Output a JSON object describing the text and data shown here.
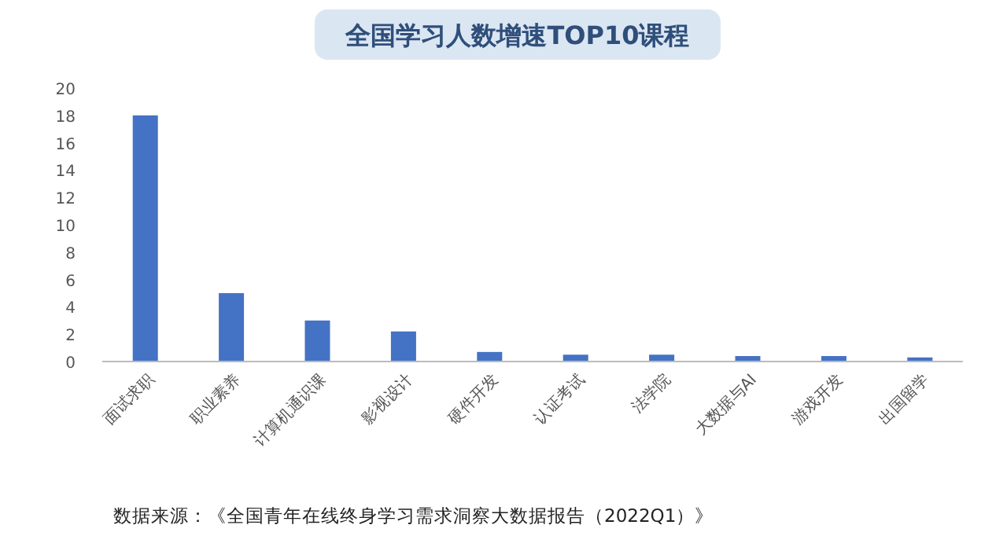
{
  "chart_data": {
    "type": "bar",
    "title": "全国学习人数增速TOP10课程",
    "categories": [
      "面试求职",
      "职业素养",
      "计算机通识课",
      "影视设计",
      "硬件开发",
      "认证考试",
      "法学院",
      "大数据与AI",
      "游戏开发",
      "出国留学"
    ],
    "values": [
      18,
      5,
      3,
      2.2,
      0.7,
      0.5,
      0.5,
      0.4,
      0.4,
      0.3
    ],
    "color": "#4472c4",
    "ylim": [
      0,
      20
    ],
    "yticks": [
      0,
      2,
      4,
      6,
      8,
      10,
      12,
      14,
      16,
      18,
      20
    ],
    "grid": false,
    "annotations": [
      "数据来源：《全国青年在线终身学习需求洞察大数据报告（2022Q1）》"
    ]
  }
}
